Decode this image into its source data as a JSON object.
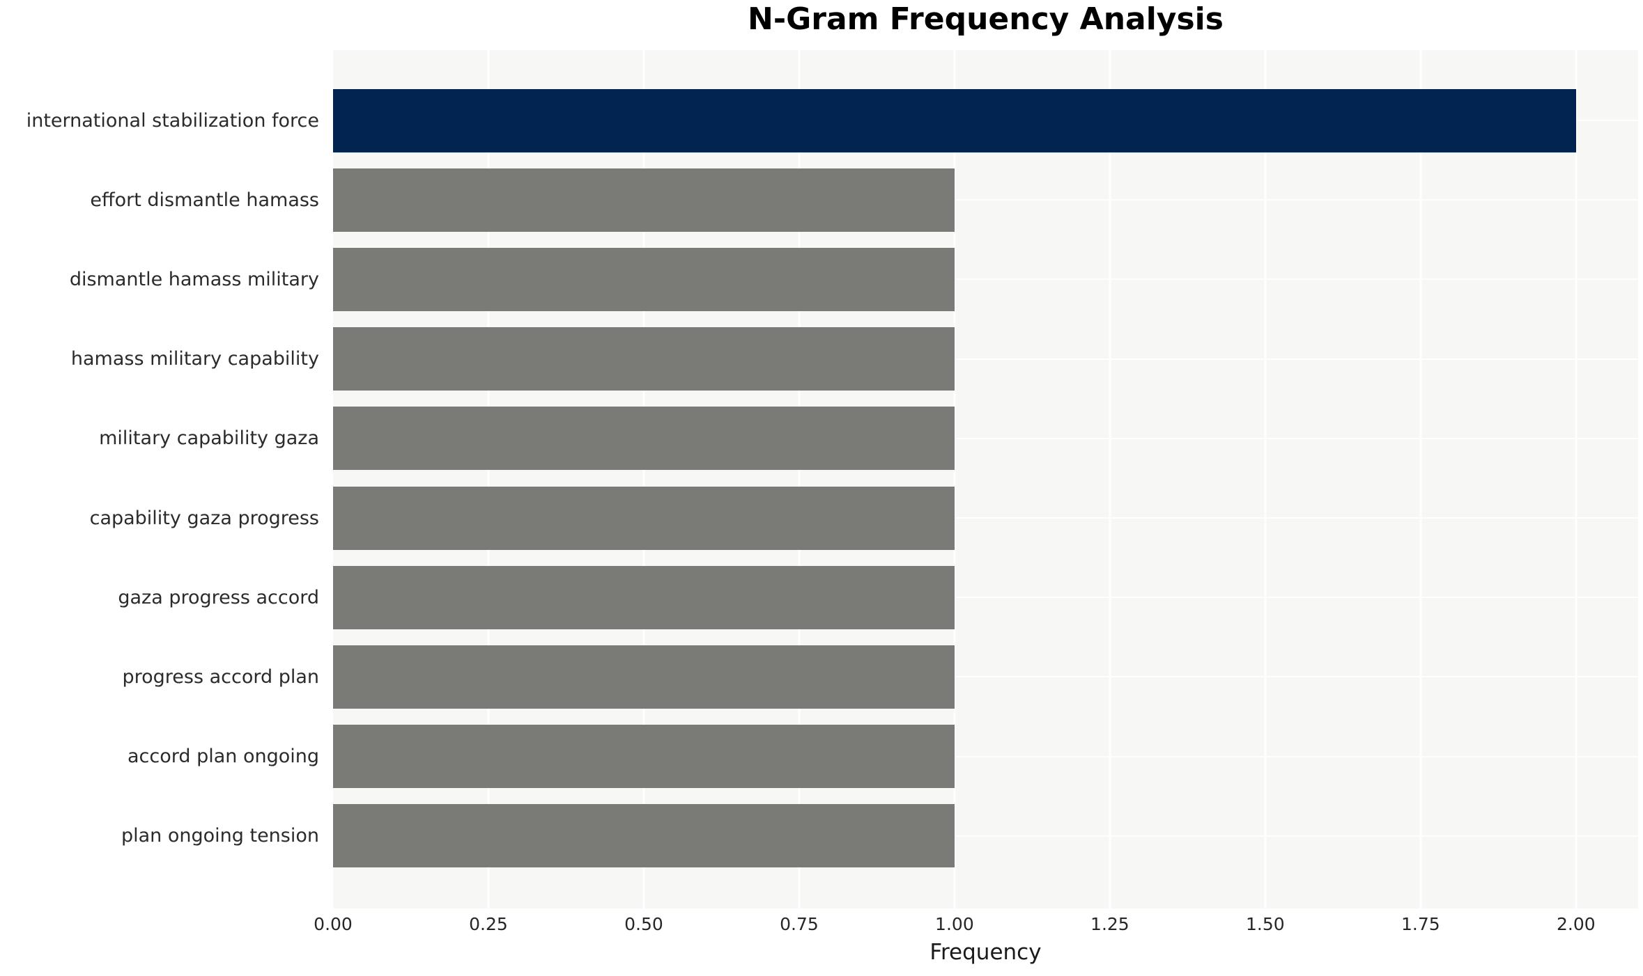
{
  "chart": {
    "title": "N-Gram Frequency Analysis",
    "xlabel": "Frequency"
  },
  "chart_data": {
    "type": "bar",
    "orientation": "horizontal",
    "title": "N-Gram Frequency Analysis",
    "xlabel": "Frequency",
    "ylabel": "",
    "categories": [
      "international stabilization force",
      "effort dismantle hamass",
      "dismantle hamass military",
      "hamass military capability",
      "military capability gaza",
      "capability gaza progress",
      "gaza progress accord",
      "progress accord plan",
      "accord plan ongoing",
      "plan ongoing tension"
    ],
    "values": [
      2,
      1,
      1,
      1,
      1,
      1,
      1,
      1,
      1,
      1
    ],
    "xlim": [
      0,
      2.1
    ],
    "xticks": [
      0,
      0.25,
      0.5,
      0.75,
      1.0,
      1.25,
      1.5,
      1.75,
      2.0
    ],
    "xtick_labels": [
      "0.00",
      "0.25",
      "0.50",
      "0.75",
      "1.00",
      "1.25",
      "1.50",
      "1.75",
      "2.00"
    ],
    "grid": true,
    "legend": false,
    "bar_height_fraction": 0.8,
    "colors": {
      "highlight_bar": "#012450",
      "default_bar": "#7a7a76",
      "plot_background": "#f7f7f6",
      "gridline": "#ffffff",
      "tick_text": "#262626",
      "label_text": "#2b2b2b",
      "title_text": "#000000"
    },
    "bar_colors": [
      "#012450",
      "#7a7a76",
      "#7a7a76",
      "#7a7a76",
      "#7a7a76",
      "#7a7a76",
      "#7a7a76",
      "#7a7a76",
      "#7a7a76",
      "#7a7a76"
    ]
  }
}
